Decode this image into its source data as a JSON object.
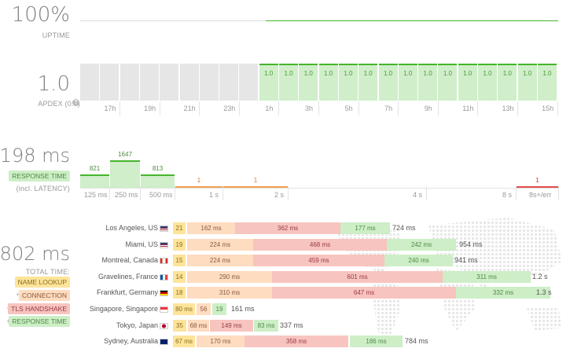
{
  "uptime": {
    "value": "100%",
    "label": "UPTIME"
  },
  "apdex": {
    "value": "1.0",
    "label": "APDEX (0.5)",
    "help_icon": "question-circle-icon",
    "cells": [
      "",
      "",
      "",
      "",
      "",
      "",
      "",
      "",
      "",
      "1.0",
      "1.0",
      "1.0",
      "1.0",
      "1.0",
      "1.0",
      "1.0",
      "1.0",
      "1.0",
      "1.0",
      "1.0",
      "1.0",
      "1.0",
      "1.0",
      "1.0"
    ],
    "hour_labels": [
      "17h",
      "19h",
      "21h",
      "23h",
      "1h",
      "3h",
      "5h",
      "7h",
      "9h",
      "11h",
      "13h",
      "15h"
    ]
  },
  "response": {
    "value": "198 ms",
    "label": "RESPONSE TIME",
    "sublabel": "(incl. LATENCY)",
    "buckets": [
      {
        "label": "125 ms",
        "count": "821",
        "value": 821
      },
      {
        "label": "250 ms",
        "count": "1647",
        "value": 1647
      },
      {
        "label": "500 ms",
        "count": "813",
        "value": 813
      },
      {
        "label": "1 s",
        "count": "1",
        "value": 1
      },
      {
        "label": "2 s",
        "count": "1",
        "value": 1
      },
      {
        "label": "4 s",
        "count": "",
        "value": 0
      },
      {
        "label": "8 s",
        "count": "",
        "value": 0
      },
      {
        "label": "8s+/err",
        "count": "1",
        "value": 1
      }
    ]
  },
  "locations": {
    "value": "802 ms",
    "total_label": "TOTAL TIME:",
    "legend": {
      "name_lookup": "NAME LOOKUP",
      "connection": "CONNECTION",
      "tls": "TLS HANDSHAKE",
      "response": "RESPONSE TIME",
      "plus": "+"
    },
    "rows": [
      {
        "name": "Los Angeles, US",
        "flag": "flag-us-icon",
        "d": "21",
        "c": "162 ms",
        "t": "362 ms",
        "r": "177 ms",
        "total": "724 ms"
      },
      {
        "name": "Miami, US",
        "flag": "flag-us-icon",
        "d": "19",
        "c": "224 ms",
        "t": "468 ms",
        "r": "242 ms",
        "total": "954 ms"
      },
      {
        "name": "Montreal, Canada",
        "flag": "flag-ca-icon",
        "d": "15",
        "c": "224 ms",
        "t": "459 ms",
        "r": "240 ms",
        "total": "941 ms"
      },
      {
        "name": "Gravelines, France",
        "flag": "flag-fr-icon",
        "d": "14",
        "c": "290 ms",
        "t": "601 ms",
        "r": "311 ms",
        "total": "1.2 s"
      },
      {
        "name": "Frankfurt, Germany",
        "flag": "flag-de-icon",
        "d": "18",
        "c": "310 ms",
        "t": "647 ms",
        "r": "332 ms",
        "total": "1.3 s"
      },
      {
        "name": "Singapore, Singapore",
        "flag": "flag-sg-icon",
        "d": "80 ms",
        "c": "56",
        "t": "",
        "r": "19",
        "total": "161 ms"
      },
      {
        "name": "Tokyo, Japan",
        "flag": "flag-jp-icon",
        "d": "35",
        "c": "68 ms",
        "t": "149 ms",
        "r": "83 ms",
        "total": "337 ms"
      },
      {
        "name": "Sydney, Australia",
        "flag": "flag-au-icon",
        "d": "67 ms",
        "c": "170 ms",
        "t": "358 ms",
        "r": "186 ms",
        "total": "784 ms"
      }
    ]
  }
}
